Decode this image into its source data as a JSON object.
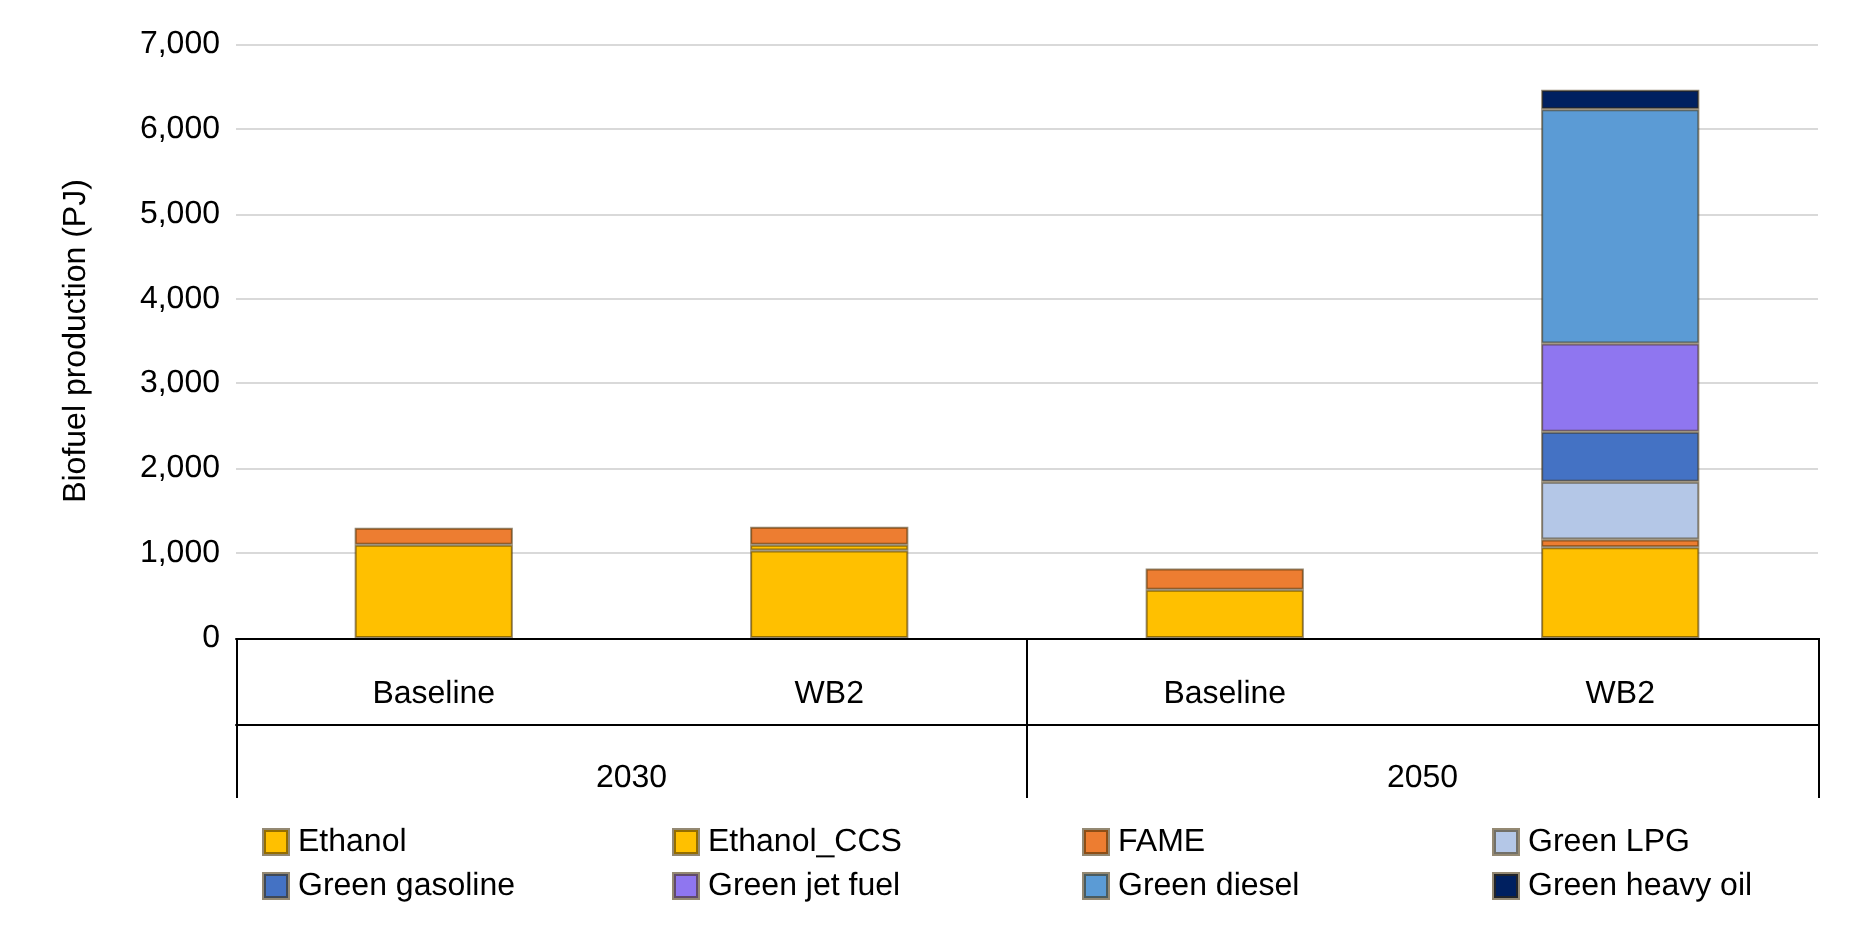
{
  "chart_data": {
    "type": "bar",
    "stacked": true,
    "ylabel": "Biofuel production (PJ)",
    "categories": [
      "Baseline",
      "WB2",
      "Baseline",
      "WB2"
    ],
    "annotations": [
      "2030",
      "2050"
    ],
    "series": [
      {
        "name": "Ethanol",
        "color": "#ffc000",
        "values": [
          1100,
          1030,
          570,
          null
        ]
      },
      {
        "name": "Ethanol_CCS",
        "color": "#ffc000",
        "values": [
          null,
          70,
          null,
          1070
        ]
      },
      {
        "name": "FAME",
        "color": "#ed7d31",
        "values": [
          200,
          210,
          250,
          90
        ]
      },
      {
        "name": "Green LPG",
        "color": "#b4c7e7",
        "values": [
          null,
          null,
          null,
          680
        ]
      },
      {
        "name": "Green gasoline",
        "color": "#4472c4",
        "values": [
          null,
          null,
          null,
          590
        ]
      },
      {
        "name": "Green jet fuel",
        "color": "#8f76f0",
        "values": [
          null,
          null,
          null,
          1040
        ]
      },
      {
        "name": "Green diesel",
        "color": "#5b9bd5",
        "values": [
          null,
          null,
          null,
          2760
        ]
      },
      {
        "name": "Green heavy oil",
        "color": "#002060",
        "values": [
          null,
          null,
          null,
          230
        ]
      }
    ],
    "ylim": [
      0,
      7000
    ],
    "yticks": [
      0,
      {
        "value": 1000,
        "label": "1,000"
      },
      {
        "value": 2000,
        "label": "2,000"
      },
      {
        "value": 3000,
        "label": "3,000"
      },
      {
        "value": 4000,
        "label": "4,000"
      },
      {
        "value": 5000,
        "label": "5,000"
      },
      {
        "value": 6000,
        "label": "6,000"
      },
      {
        "value": 7000,
        "label": "7,000"
      }
    ],
    "grid": "y",
    "legend": "bottom"
  }
}
